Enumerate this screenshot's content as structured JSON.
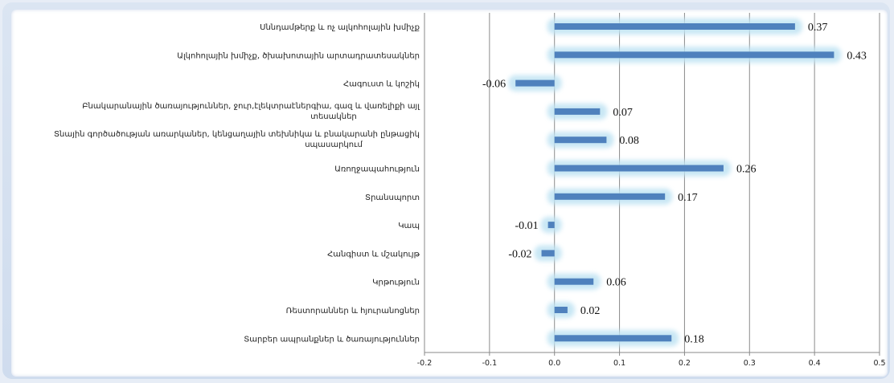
{
  "chart_data": {
    "type": "bar",
    "orientation": "horizontal",
    "title": "",
    "xlabel": "",
    "ylabel": "",
    "xlim": [
      -0.2,
      0.5
    ],
    "x_ticks": [
      -0.2,
      -0.1,
      0.0,
      0.1,
      0.2,
      0.3,
      0.4,
      0.5
    ],
    "x_tick_labels": [
      "-0.2",
      "-0.1",
      "0.0",
      "0.1",
      "0.2",
      "0.3",
      "0.4",
      "0.5"
    ],
    "grid": "vertical",
    "bar_color": "#4f81bd",
    "glow_color": "#bfe3f3",
    "categories": [
      "Սննդամթերք  և ոչ ալկոհոլային  խմիչք",
      "Ալկոհոլային  խմիչք, ծխախոտային արտադրատեսակներ",
      "Հագուստ և կոշիկ",
      "Բնակարանային ծառայություններ, ջուր,էլեկտրաէներգիա, գազ և վառելիքի այլ տեսակներ",
      "Տնային գործածության առարկաներ, կենցաղային տեխնիկա և բնակարանի ընթացիկ սպասարկում",
      "Առողջապահություն",
      "Տրանսպորտ",
      "Կապ",
      "Հանգիստ և մշակույթ",
      "Կրթություն",
      "Ռեստորաններ  և հյուրանոցներ",
      "Տարբեր ապրանքներ  և ծառայություններ"
    ],
    "category_lines": [
      [
        "Սննդամթերք  և ոչ ալկոհոլային  խմիչք"
      ],
      [
        "Ալկոհոլային  խմիչք, ծխախոտային արտադրատեսակներ"
      ],
      [
        "Հագուստ և կոշիկ"
      ],
      [
        "Բնակարանային ծառայություններ, ջուր,էլեկտրաէներգիա, գազ և վառելիքի այլ",
        "տեսակներ"
      ],
      [
        "Տնային գործածության առարկաներ, կենցաղային տեխնիկա և բնակարանի ընթացիկ",
        "սպասարկում"
      ],
      [
        "Առողջապահություն"
      ],
      [
        "Տրանսպորտ"
      ],
      [
        "Կապ"
      ],
      [
        "Հանգիստ և մշակույթ"
      ],
      [
        "Կրթություն"
      ],
      [
        "Ռեստորաններ  և հյուրանոցներ"
      ],
      [
        "Տարբեր ապրանքներ  և ծառայություններ"
      ]
    ],
    "values": [
      0.37,
      0.43,
      -0.06,
      0.07,
      0.08,
      0.26,
      0.17,
      -0.01,
      -0.02,
      0.06,
      0.02,
      0.18
    ],
    "value_labels": [
      "0.37",
      "0.43",
      "-0.06",
      "0.07",
      "0.08",
      "0.26",
      "0.17",
      "-0.01",
      "-0.02",
      "0.06",
      "0.02",
      "0.18"
    ]
  }
}
